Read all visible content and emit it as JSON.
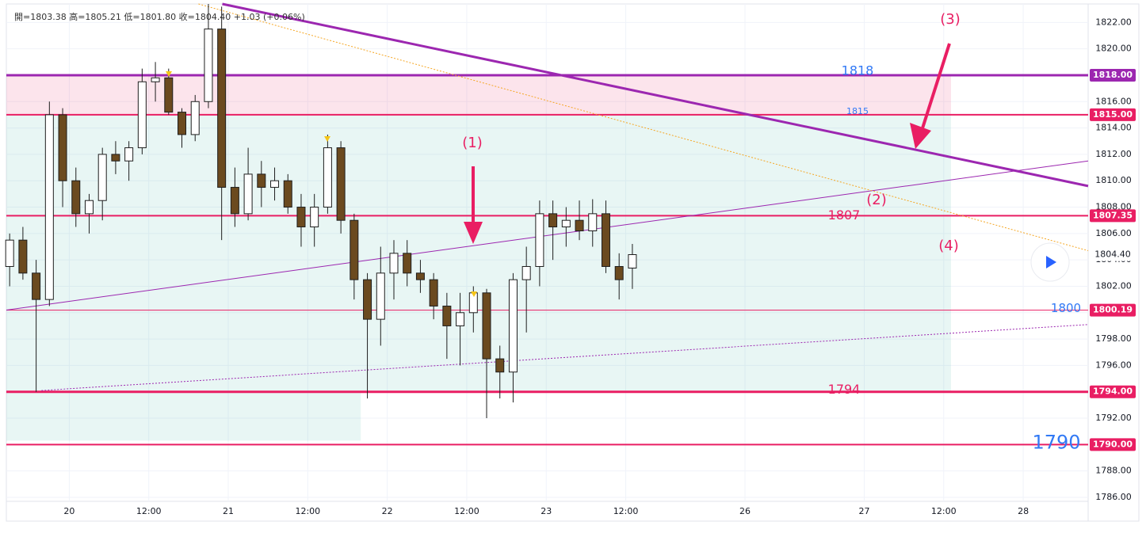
{
  "chart_data": {
    "type": "candlestick",
    "legend": "開=1803.38 高=1805.21 低=1801.80 收=1804.40 +1.03 (+0.06%)",
    "xlim": [
      -9.5,
      153.8
    ],
    "ylim": [
      1785.7,
      1823.4
    ],
    "grid": true,
    "up_color": "#ffffff",
    "down_color": "#6b4a1f",
    "outline_color": "#1e1e1e",
    "xticks": [
      {
        "value": 0,
        "label": "20"
      },
      {
        "value": 12,
        "label": "12:00"
      },
      {
        "value": 24,
        "label": "21"
      },
      {
        "value": 36,
        "label": "12:00"
      },
      {
        "value": 48,
        "label": "22"
      },
      {
        "value": 60,
        "label": "12:00"
      },
      {
        "value": 72,
        "label": "23"
      },
      {
        "value": 84,
        "label": "12:00"
      },
      {
        "value": 102,
        "label": "26"
      },
      {
        "value": 120,
        "label": "27"
      },
      {
        "value": 132,
        "label": "12:00"
      },
      {
        "value": 144,
        "label": "28"
      }
    ],
    "yticks": [
      {
        "value": 1786,
        "label": "1786.00"
      },
      {
        "value": 1788,
        "label": "1788.00"
      },
      {
        "value": 1790,
        "label": "1790.00"
      },
      {
        "value": 1792,
        "label": "1792.00"
      },
      {
        "value": 1794,
        "label": "1794.00"
      },
      {
        "value": 1796,
        "label": "1796.00"
      },
      {
        "value": 1798,
        "label": "1798.00"
      },
      {
        "value": 1800,
        "label": "1800.00"
      },
      {
        "value": 1802,
        "label": "1802.00"
      },
      {
        "value": 1804,
        "label": "1804.00"
      },
      {
        "value": 1806,
        "label": "1806.00"
      },
      {
        "value": 1808,
        "label": "1808.00"
      },
      {
        "value": 1810,
        "label": "1810.00"
      },
      {
        "value": 1812,
        "label": "1812.00"
      },
      {
        "value": 1814,
        "label": "1814.00"
      },
      {
        "value": 1816,
        "label": "1816.00"
      },
      {
        "value": 1818,
        "label": "1818.00"
      },
      {
        "value": 1820,
        "label": "1820.00"
      },
      {
        "value": 1822,
        "label": "1822.00"
      }
    ],
    "candles": {
      "x": [
        -9,
        -7,
        -5,
        -3,
        -1,
        1,
        3,
        5,
        7,
        9,
        11,
        13,
        15,
        17,
        19,
        21,
        23,
        25,
        27,
        29,
        31,
        33,
        35,
        37,
        39,
        41,
        43,
        45,
        47,
        49,
        51,
        53,
        55,
        57,
        59,
        61,
        63,
        65,
        67,
        69,
        71,
        73,
        75,
        77,
        79,
        81,
        83,
        85
      ],
      "open": [
        1803.5,
        1805.5,
        1803,
        1801,
        1815,
        1810,
        1807.5,
        1808.5,
        1812,
        1811.5,
        1812.5,
        1817.5,
        1817.8,
        1815.2,
        1813.5,
        1816,
        1821.5,
        1809.5,
        1807.5,
        1810.5,
        1809.5,
        1810,
        1808,
        1806.5,
        1808,
        1812.5,
        1807,
        1802.5,
        1799.5,
        1803,
        1804.5,
        1803,
        1802.5,
        1800.5,
        1799,
        1800,
        1801.5,
        1796.5,
        1795.5,
        1802.5,
        1803.5,
        1807.5,
        1806.5,
        1807,
        1806.2,
        1807.5,
        1803.5,
        1803.38
      ],
      "high": [
        1806,
        1806.5,
        1804,
        1816,
        1815.5,
        1811,
        1809,
        1812.5,
        1813,
        1813,
        1818.5,
        1819,
        1818.5,
        1815.5,
        1816.5,
        1823.4,
        1823.2,
        1811,
        1812.5,
        1811.5,
        1811,
        1810.5,
        1809,
        1809,
        1813.5,
        1813,
        1807.5,
        1803,
        1805,
        1805.5,
        1805.5,
        1804,
        1803,
        1801.5,
        1801.5,
        1802,
        1801.8,
        1797.5,
        1803,
        1805,
        1808.5,
        1808.5,
        1808,
        1808.5,
        1808.6,
        1808.5,
        1804.5,
        1805.21
      ],
      "low": [
        1802,
        1802.5,
        1794,
        1800.5,
        1808,
        1806.5,
        1806,
        1807,
        1810.5,
        1810,
        1812,
        1816,
        1815,
        1812.5,
        1813,
        1815.5,
        1805.5,
        1806.5,
        1807,
        1808,
        1808.5,
        1807.5,
        1805,
        1805,
        1807.5,
        1806,
        1801,
        1793.5,
        1797.5,
        1801,
        1802,
        1801.5,
        1799.5,
        1796.5,
        1796,
        1798.5,
        1792,
        1793.5,
        1793.2,
        1798.5,
        1802,
        1804,
        1805,
        1805.5,
        1805,
        1803,
        1801,
        1801.8
      ],
      "close": [
        1805.5,
        1803,
        1801,
        1815,
        1810,
        1807.5,
        1808.5,
        1812,
        1811.5,
        1812.5,
        1817.5,
        1817.8,
        1815.2,
        1813.5,
        1816,
        1821.5,
        1809.5,
        1807.5,
        1810.5,
        1809.5,
        1810,
        1808,
        1806.5,
        1808,
        1812.5,
        1807,
        1802.5,
        1799.5,
        1803,
        1804.5,
        1803,
        1802.5,
        1800.5,
        1799,
        1800,
        1801.5,
        1796.5,
        1795.5,
        1802.5,
        1803.5,
        1807.5,
        1806.5,
        1807,
        1806.2,
        1807.5,
        1803.5,
        1802.5,
        1804.4
      ]
    },
    "last_price": {
      "value": 1804.4,
      "label": "1804.40"
    },
    "hlines": [
      {
        "value": 1818,
        "label": "1818.00",
        "color": "#9c27b0",
        "line_width": 3,
        "note": "1818",
        "note_color": "#3179f5"
      },
      {
        "value": 1815,
        "label": "1815.00",
        "color": "#e91e63",
        "line_width": 2,
        "note": "1815",
        "note_color": "#3179f5"
      },
      {
        "value": 1807.35,
        "label": "1807.35",
        "color": "#e91e63",
        "line_width": 2,
        "note": "1807",
        "note_color": "#e91e63"
      },
      {
        "value": 1800.19,
        "label": "1800.19",
        "color": "#e91e63",
        "line_width": 1,
        "note": "1800",
        "note_color": "#3179f5"
      },
      {
        "value": 1794,
        "label": "1794.00",
        "color": "#e91e63",
        "line_width": 3,
        "note": "1794",
        "note_color": "#e91e63"
      },
      {
        "value": 1790,
        "label": "1790.00",
        "color": "#e91e63",
        "line_width": 2,
        "note": "1790",
        "note_color": "#3179f5"
      }
    ],
    "zones": [
      {
        "x": [
          -9.5,
          133.1
        ],
        "y": [
          1815,
          1818
        ],
        "color": "rgba(233,30,99,0.12)"
      },
      {
        "x": [
          -9.5,
          133.1
        ],
        "y": [
          1794,
          1815
        ],
        "color": "rgba(0,150,136,0.09)"
      },
      {
        "x": [
          -9.5,
          44.0
        ],
        "y": [
          1790.3,
          1794
        ],
        "color": "rgba(0,150,136,0.09)"
      }
    ],
    "trend_lines": [
      {
        "x": [
          23.1,
          153.8
        ],
        "y": [
          1823.4,
          1809.6
        ],
        "color": "#9c27b0",
        "line_width": 3,
        "style": "solid"
      },
      {
        "x": [
          -9.5,
          153.8
        ],
        "y": [
          1800.2,
          1811.5
        ],
        "color": "#9c27b0",
        "line_width": 1,
        "style": "solid"
      },
      {
        "x": [
          -4.2,
          153.8
        ],
        "y": [
          1794.1,
          1799.1
        ],
        "color": "#9c27b0",
        "line_width": 1,
        "style": "dotted"
      },
      {
        "x": [
          19.5,
          153.8
        ],
        "y": [
          1823.4,
          1804.7
        ],
        "color": "#f5a623",
        "line_width": 1,
        "style": "dotted"
      }
    ],
    "annotations": [
      "(1)",
      "(2)",
      "(3)",
      "(4)"
    ]
  }
}
